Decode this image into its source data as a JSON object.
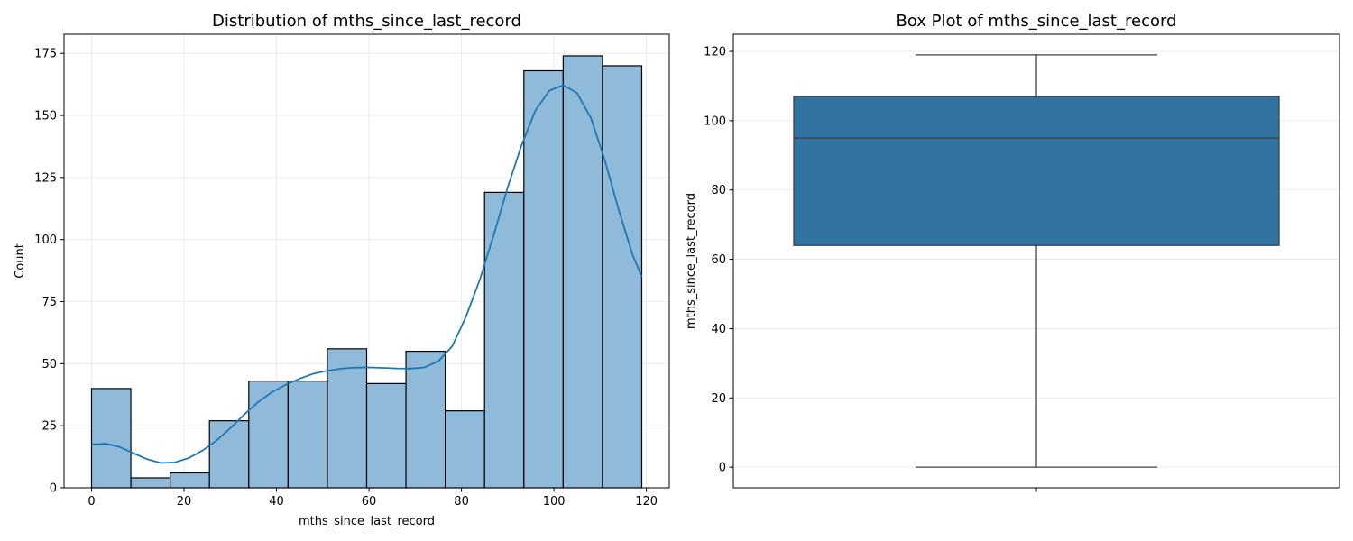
{
  "chart_data": [
    {
      "type": "bar",
      "title": "Distribution of mths_since_last_record",
      "xlabel": "mths_since_last_record",
      "ylabel": "Count",
      "xlim": [
        -5.95,
        124.95
      ],
      "ylim": [
        0,
        182.7
      ],
      "xticks": [
        0,
        20,
        40,
        60,
        80,
        100,
        120
      ],
      "yticks": [
        0,
        25,
        50,
        75,
        100,
        125,
        150,
        175
      ],
      "grid": true,
      "bin_edges": [
        0,
        8.5,
        17,
        25.5,
        34,
        42.5,
        51,
        59.5,
        68,
        76.5,
        85,
        93.5,
        102,
        110.5,
        119
      ],
      "values": [
        40,
        4,
        6,
        27,
        43,
        43,
        56,
        42,
        55,
        31,
        119,
        168,
        174,
        170
      ],
      "bar_color": "#8fbada",
      "edge_color": "#000000",
      "kde": {
        "color": "#1f77b4",
        "x": [
          0,
          3,
          6,
          9,
          12,
          15,
          18,
          21,
          24,
          27,
          30,
          33,
          36,
          39,
          42,
          45,
          48,
          51,
          54,
          57,
          60,
          63,
          66,
          69,
          72,
          75,
          78,
          81,
          84,
          87,
          90,
          93,
          96,
          99,
          102,
          105,
          108,
          111,
          114,
          117,
          119
        ],
        "y": [
          17.5,
          17.8,
          16.5,
          14,
          11.5,
          10,
          10.2,
          12,
          15,
          19,
          24,
          29.5,
          34.5,
          38.5,
          41.5,
          44,
          46,
          47.2,
          48,
          48.4,
          48.5,
          48.3,
          48.1,
          48,
          48.5,
          51,
          57,
          69,
          84,
          102,
          121,
          138,
          152,
          160,
          162.2,
          159,
          149,
          132,
          112,
          94,
          85
        ]
      }
    },
    {
      "type": "box",
      "title": "Box Plot of mths_since_last_record",
      "ylabel": "mths_since_last_record",
      "ylim": [
        -5.95,
        124.95
      ],
      "yticks": [
        0,
        20,
        40,
        60,
        80,
        100,
        120
      ],
      "grid": true,
      "whisker_low": 0,
      "q1": 64,
      "median": 95,
      "q3": 107,
      "whisker_high": 119,
      "box_color": "#3274a1",
      "line_color": "#3f3f3f"
    }
  ]
}
